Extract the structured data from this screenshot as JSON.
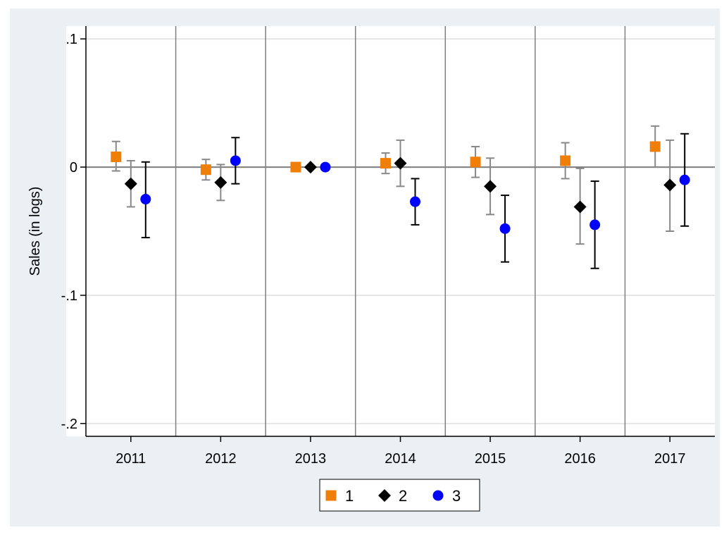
{
  "chart_data": {
    "type": "scatter",
    "title": "",
    "xlabel": "",
    "ylabel": "Sales (in logs)",
    "ylim": [
      -0.21,
      0.11
    ],
    "yticks": [
      {
        "value": 0.1,
        "label": ".1"
      },
      {
        "value": 0,
        "label": "0"
      },
      {
        "value": -0.1,
        "label": "-.1"
      },
      {
        "value": -0.2,
        "label": "-.2"
      }
    ],
    "categories": [
      "2011",
      "2012",
      "2013",
      "2014",
      "2015",
      "2016",
      "2017"
    ],
    "grid": true,
    "reference_line_y": 0,
    "legend_position": "bottom",
    "series": [
      {
        "name": "1",
        "marker": "square",
        "color": "#f07f09",
        "error_bar_color": "#888888",
        "values": [
          0.008,
          -0.002,
          0.0,
          0.003,
          0.004,
          0.005,
          0.016
        ],
        "ci_low": [
          -0.003,
          -0.01,
          0.0,
          -0.005,
          -0.008,
          -0.009,
          0.0
        ],
        "ci_high": [
          0.02,
          0.006,
          0.0,
          0.011,
          0.016,
          0.019,
          0.032
        ]
      },
      {
        "name": "2",
        "marker": "diamond",
        "color": "#000000",
        "error_bar_color": "#888888",
        "values": [
          -0.013,
          -0.012,
          0.0,
          0.003,
          -0.015,
          -0.031,
          -0.014
        ],
        "ci_low": [
          -0.031,
          -0.026,
          0.0,
          -0.015,
          -0.037,
          -0.06,
          -0.05
        ],
        "ci_high": [
          0.005,
          0.002,
          0.0,
          0.021,
          0.007,
          -0.001,
          0.021
        ]
      },
      {
        "name": "3",
        "marker": "circle",
        "color": "#0000ff",
        "error_bar_color": "#000000",
        "values": [
          -0.025,
          0.005,
          0.0,
          -0.027,
          -0.048,
          -0.045,
          -0.01
        ],
        "ci_low": [
          -0.055,
          -0.013,
          0.0,
          -0.045,
          -0.074,
          -0.079,
          -0.046
        ],
        "ci_high": [
          0.004,
          0.023,
          0.0,
          -0.009,
          -0.022,
          -0.011,
          0.026
        ]
      }
    ]
  }
}
